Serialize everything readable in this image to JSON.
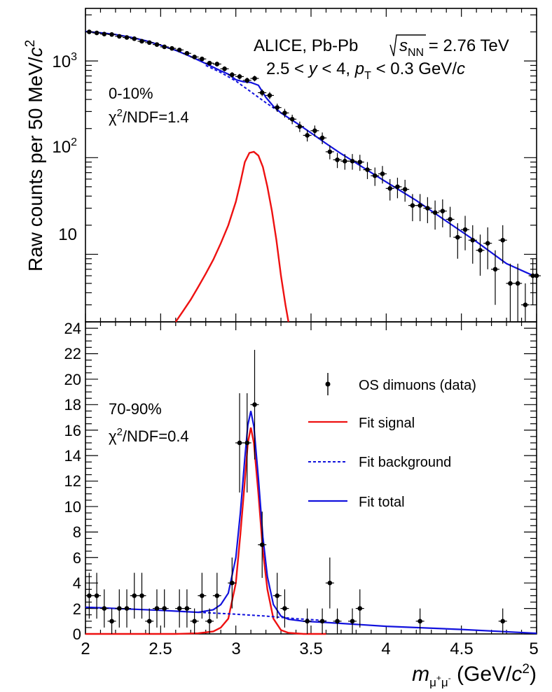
{
  "chart_data": [
    {
      "type": "scatter",
      "panel": "top",
      "yscale": "log",
      "xlim": [
        2,
        5
      ],
      "ylim": [
        2,
        3500
      ],
      "ylabel_main": "Raw counts per 50 MeV/",
      "ylabel_c": "c",
      "ylabel_exp": "2",
      "yticks": [
        {
          "value": 1000,
          "base": "10",
          "exp": "3"
        },
        {
          "value": 100,
          "base": "10",
          "exp": "2"
        },
        {
          "value": 10,
          "base": "10",
          "exp": ""
        }
      ],
      "header": {
        "experiment": "ALICE, Pb-Pb",
        "energy_sym": "s",
        "energy_sub": "NN",
        "energy_val": " = 2.76 TeV",
        "kinematics_a": "2.5 < ",
        "kinematics_y": "y",
        "kinematics_b": " < 4, ",
        "kinematics_p": "p",
        "kinematics_t": "T",
        "kinematics_c": " < 0.3 GeV/",
        "kinematics_cc": "c"
      },
      "centrality": "0-10%",
      "chi2_sym": "χ",
      "chi2_exp": "2",
      "chi2_rest": "/NDF=1.4",
      "data": [
        {
          "x": 2.025,
          "y": 2000,
          "err": 80
        },
        {
          "x": 2.075,
          "y": 1950,
          "err": 78
        },
        {
          "x": 2.125,
          "y": 1900,
          "err": 76
        },
        {
          "x": 2.175,
          "y": 1880,
          "err": 75
        },
        {
          "x": 2.225,
          "y": 1800,
          "err": 73
        },
        {
          "x": 2.275,
          "y": 1750,
          "err": 72
        },
        {
          "x": 2.325,
          "y": 1700,
          "err": 70
        },
        {
          "x": 2.375,
          "y": 1600,
          "err": 68
        },
        {
          "x": 2.425,
          "y": 1550,
          "err": 67
        },
        {
          "x": 2.475,
          "y": 1480,
          "err": 65
        },
        {
          "x": 2.525,
          "y": 1400,
          "err": 63
        },
        {
          "x": 2.575,
          "y": 1350,
          "err": 62
        },
        {
          "x": 2.625,
          "y": 1300,
          "err": 60
        },
        {
          "x": 2.675,
          "y": 1200,
          "err": 58
        },
        {
          "x": 2.725,
          "y": 1100,
          "err": 56
        },
        {
          "x": 2.775,
          "y": 1050,
          "err": 55
        },
        {
          "x": 2.825,
          "y": 950,
          "err": 52
        },
        {
          "x": 2.875,
          "y": 930,
          "err": 52
        },
        {
          "x": 2.925,
          "y": 830,
          "err": 49
        },
        {
          "x": 2.975,
          "y": 720,
          "err": 46
        },
        {
          "x": 3.025,
          "y": 690,
          "err": 45
        },
        {
          "x": 3.075,
          "y": 630,
          "err": 43
        },
        {
          "x": 3.125,
          "y": 660,
          "err": 44
        },
        {
          "x": 3.175,
          "y": 470,
          "err": 38
        },
        {
          "x": 3.225,
          "y": 440,
          "err": 37
        },
        {
          "x": 3.275,
          "y": 330,
          "err": 32
        },
        {
          "x": 3.325,
          "y": 290,
          "err": 30
        },
        {
          "x": 3.375,
          "y": 250,
          "err": 28
        },
        {
          "x": 3.425,
          "y": 210,
          "err": 26
        },
        {
          "x": 3.475,
          "y": 170,
          "err": 23
        },
        {
          "x": 3.525,
          "y": 190,
          "err": 25
        },
        {
          "x": 3.575,
          "y": 160,
          "err": 22
        },
        {
          "x": 3.625,
          "y": 115,
          "err": 19
        },
        {
          "x": 3.675,
          "y": 95,
          "err": 17
        },
        {
          "x": 3.725,
          "y": 92,
          "err": 17
        },
        {
          "x": 3.775,
          "y": 92,
          "err": 17
        },
        {
          "x": 3.825,
          "y": 90,
          "err": 17
        },
        {
          "x": 3.875,
          "y": 75,
          "err": 15
        },
        {
          "x": 3.925,
          "y": 65,
          "err": 14
        },
        {
          "x": 3.975,
          "y": 68,
          "err": 14
        },
        {
          "x": 4.025,
          "y": 48,
          "err": 12
        },
        {
          "x": 4.075,
          "y": 50,
          "err": 12
        },
        {
          "x": 4.125,
          "y": 47,
          "err": 12
        },
        {
          "x": 4.175,
          "y": 32,
          "err": 10
        },
        {
          "x": 4.225,
          "y": 32,
          "err": 10
        },
        {
          "x": 4.275,
          "y": 30,
          "err": 9
        },
        {
          "x": 4.325,
          "y": 27,
          "err": 9
        },
        {
          "x": 4.375,
          "y": 28,
          "err": 9
        },
        {
          "x": 4.425,
          "y": 23,
          "err": 8
        },
        {
          "x": 4.475,
          "y": 15,
          "err": 6
        },
        {
          "x": 4.525,
          "y": 18,
          "err": 7
        },
        {
          "x": 4.575,
          "y": 14,
          "err": 6
        },
        {
          "x": 4.625,
          "y": 11,
          "err": 5
        },
        {
          "x": 4.675,
          "y": 13,
          "err": 6
        },
        {
          "x": 4.725,
          "y": 7,
          "err": 4
        },
        {
          "x": 4.775,
          "y": 14,
          "err": 6
        },
        {
          "x": 4.825,
          "y": 5,
          "err": 3
        },
        {
          "x": 4.875,
          "y": 5,
          "err": 3
        },
        {
          "x": 4.925,
          "y": 3,
          "err": 2
        },
        {
          "x": 4.975,
          "y": 6,
          "err": 3
        },
        {
          "x": 5.0,
          "y": 6,
          "err": 3
        }
      ],
      "signal_curve": {
        "x": [
          2.6,
          2.65,
          2.7,
          2.75,
          2.8,
          2.85,
          2.9,
          2.95,
          3.0,
          3.03,
          3.06,
          3.09,
          3.12,
          3.15,
          3.18,
          3.21,
          3.24,
          3.27,
          3.3,
          3.33,
          3.35
        ],
        "y": [
          2,
          2.6,
          3.4,
          4.6,
          6.3,
          8.8,
          13,
          20,
          35,
          55,
          90,
          112,
          115,
          105,
          80,
          50,
          28,
          14,
          6,
          3,
          2
        ]
      },
      "total_curve": {
        "x": [
          2.0,
          2.1,
          2.2,
          2.3,
          2.4,
          2.5,
          2.6,
          2.7,
          2.8,
          2.9,
          2.95,
          3.0,
          3.05,
          3.1,
          3.15,
          3.2,
          3.25,
          3.3,
          3.4,
          3.5,
          3.6,
          3.7,
          3.8,
          3.9,
          4.0,
          4.2,
          4.4,
          4.6,
          4.8,
          5.0
        ],
        "y": [
          2020,
          1960,
          1880,
          1760,
          1620,
          1460,
          1290,
          1110,
          940,
          790,
          730,
          640,
          610,
          600,
          560,
          420,
          340,
          290,
          230,
          180,
          140,
          110,
          88,
          70,
          56,
          36,
          22,
          13.5,
          8,
          5.8
        ]
      },
      "background_curve": {
        "x": [
          2.8,
          2.9,
          3.0,
          3.1,
          3.2,
          3.3
        ],
        "y": [
          900,
          760,
          620,
          480,
          370,
          290
        ]
      }
    },
    {
      "type": "scatter",
      "panel": "bottom",
      "xlim": [
        2,
        5
      ],
      "ylim": [
        0,
        24.5
      ],
      "xticks": [
        "2",
        "2.5",
        "3",
        "3.5",
        "4",
        "4.5",
        "5"
      ],
      "yticks": [
        "0",
        "2",
        "4",
        "6",
        "8",
        "10",
        "12",
        "14",
        "16",
        "18",
        "20",
        "22",
        "24"
      ],
      "xlabel_m": "m",
      "xlabel_sub": "μ",
      "xlabel_sup1": "+",
      "xlabel_mu": "μ",
      "xlabel_sup2": "-",
      "xlabel_unit": " (GeV/",
      "xlabel_c": "c",
      "xlabel_exp": "2",
      "xlabel_close": ")",
      "centrality": "70-90%",
      "chi2_sym": "χ",
      "chi2_exp": "2",
      "chi2_rest": "/NDF=0.4",
      "legend": [
        {
          "label": "OS dimuons (data)",
          "style": "marker",
          "color": "#000000"
        },
        {
          "label": "Fit signal",
          "style": "line",
          "color": "#ee1111"
        },
        {
          "label": "Fit background",
          "style": "dashed",
          "color": "#1111dd"
        },
        {
          "label": "Fit total",
          "style": "line",
          "color": "#1111dd"
        }
      ],
      "data": [
        {
          "x": 2.025,
          "y": 3,
          "err": 1.8
        },
        {
          "x": 2.075,
          "y": 3,
          "err": 1.8
        },
        {
          "x": 2.125,
          "y": 2,
          "err": 1.5
        },
        {
          "x": 2.175,
          "y": 1,
          "err": 1
        },
        {
          "x": 2.225,
          "y": 2,
          "err": 1.5
        },
        {
          "x": 2.275,
          "y": 2,
          "err": 1.5
        },
        {
          "x": 2.325,
          "y": 3,
          "err": 1.8
        },
        {
          "x": 2.375,
          "y": 3,
          "err": 1.8
        },
        {
          "x": 2.425,
          "y": 1,
          "err": 1
        },
        {
          "x": 2.475,
          "y": 2,
          "err": 1.5
        },
        {
          "x": 2.525,
          "y": 2,
          "err": 1.5
        },
        {
          "x": 2.625,
          "y": 2,
          "err": 1.5
        },
        {
          "x": 2.675,
          "y": 2,
          "err": 1.5
        },
        {
          "x": 2.725,
          "y": 1,
          "err": 1
        },
        {
          "x": 2.775,
          "y": 3,
          "err": 1.8
        },
        {
          "x": 2.825,
          "y": 1,
          "err": 1
        },
        {
          "x": 2.875,
          "y": 3,
          "err": 1.8
        },
        {
          "x": 2.975,
          "y": 4,
          "err": 2
        },
        {
          "x": 3.025,
          "y": 15,
          "err": 3.9
        },
        {
          "x": 3.075,
          "y": 15,
          "err": 3.9
        },
        {
          "x": 3.125,
          "y": 18,
          "err": 4.3
        },
        {
          "x": 3.175,
          "y": 7,
          "err": 2.6
        },
        {
          "x": 3.275,
          "y": 3,
          "err": 1.8
        },
        {
          "x": 3.325,
          "y": 2,
          "err": 1.5
        },
        {
          "x": 3.475,
          "y": 1,
          "err": 1
        },
        {
          "x": 3.575,
          "y": 1,
          "err": 1
        },
        {
          "x": 3.625,
          "y": 4,
          "err": 2
        },
        {
          "x": 3.675,
          "y": 1,
          "err": 1
        },
        {
          "x": 3.775,
          "y": 1,
          "err": 1
        },
        {
          "x": 3.825,
          "y": 2,
          "err": 1.5
        },
        {
          "x": 4.225,
          "y": 1,
          "err": 1
        },
        {
          "x": 4.775,
          "y": 1,
          "err": 1
        }
      ],
      "signal_curve": {
        "x": [
          2.0,
          2.6,
          2.75,
          2.85,
          2.9,
          2.95,
          3.0,
          3.03,
          3.06,
          3.08,
          3.1,
          3.12,
          3.15,
          3.18,
          3.21,
          3.25,
          3.3,
          3.35,
          3.45,
          3.6
        ],
        "y": [
          0,
          0,
          0.05,
          0.2,
          0.5,
          1.2,
          4,
          7.8,
          12,
          15,
          16.2,
          15,
          11,
          6.5,
          3.5,
          1.2,
          0.3,
          0.08,
          0,
          0
        ]
      },
      "total_curve": {
        "x": [
          2.0,
          2.5,
          2.75,
          2.85,
          2.9,
          2.95,
          3.0,
          3.03,
          3.06,
          3.08,
          3.1,
          3.12,
          3.15,
          3.18,
          3.21,
          3.25,
          3.3,
          3.35,
          3.45,
          3.6,
          4.0,
          4.5,
          5.0
        ],
        "y": [
          2.1,
          1.85,
          1.7,
          1.9,
          2.3,
          3.2,
          6,
          9.5,
          13.8,
          16.4,
          17.5,
          16.3,
          12.2,
          7.6,
          4.5,
          2.3,
          1.4,
          1.15,
          1.0,
          0.9,
          0.6,
          0.35,
          0.05
        ]
      },
      "background_curve": {
        "x": [
          2.75,
          3.0,
          3.2,
          3.4,
          3.6
        ],
        "y": [
          1.7,
          1.55,
          1.4,
          1.2,
          1.05
        ]
      }
    }
  ]
}
